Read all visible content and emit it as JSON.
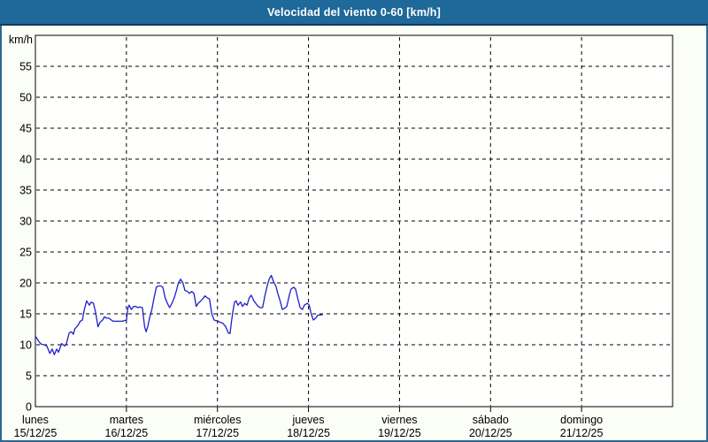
{
  "window": {
    "title": "Velocidad del viento 0-60 [km/h]"
  },
  "colors": {
    "title_bar": "#1e689a",
    "title_bar_edge": "#0f3c60",
    "frame": "#2a6896",
    "page_bg": "#fbfdf7",
    "plot_bg": "#fffffe",
    "grid": "#000000",
    "axis": "#000000",
    "text": "#000000",
    "title_text": "#ffffff",
    "line": "#1f1fc8"
  },
  "chart_data": {
    "type": "line",
    "title": "Velocidad del viento 0-60 [km/h]",
    "ylabel": "km/h",
    "xlabel": "",
    "ylim": [
      0,
      60
    ],
    "y_ticks": [
      0,
      5,
      10,
      15,
      20,
      25,
      30,
      35,
      40,
      45,
      50,
      55
    ],
    "grid": "dashed",
    "legend_position": "none",
    "x_days": [
      {
        "name": "lunes",
        "date": "15/12/25"
      },
      {
        "name": "martes",
        "date": "16/12/25"
      },
      {
        "name": "miércoles",
        "date": "17/12/25"
      },
      {
        "name": "jueves",
        "date": "18/12/25"
      },
      {
        "name": "viernes",
        "date": "19/12/25"
      },
      {
        "name": "sábado",
        "date": "20/12/25"
      },
      {
        "name": "domingo",
        "date": "21/12/25"
      }
    ],
    "x_unit": "hours_since_monday_00h",
    "x_total_hours": 168,
    "series": [
      {
        "name": "velocidad del viento",
        "color": "#1f1fc8",
        "points": [
          [
            0.0,
            11.4
          ],
          [
            0.7,
            10.7
          ],
          [
            1.5,
            10.1
          ],
          [
            2.3,
            10.0
          ],
          [
            3.0,
            9.8
          ],
          [
            3.8,
            8.6
          ],
          [
            4.4,
            9.3
          ],
          [
            5.0,
            8.4
          ],
          [
            5.6,
            9.3
          ],
          [
            6.1,
            8.8
          ],
          [
            6.9,
            10.2
          ],
          [
            7.7,
            9.8
          ],
          [
            8.2,
            10.2
          ],
          [
            8.9,
            11.9
          ],
          [
            9.5,
            12.1
          ],
          [
            10.0,
            11.7
          ],
          [
            10.4,
            12.6
          ],
          [
            11.2,
            13.1
          ],
          [
            11.8,
            13.8
          ],
          [
            12.4,
            14.0
          ],
          [
            12.9,
            15.7
          ],
          [
            13.5,
            17.1
          ],
          [
            14.2,
            16.4
          ],
          [
            14.7,
            16.9
          ],
          [
            15.3,
            16.7
          ],
          [
            15.9,
            15.2
          ],
          [
            16.5,
            12.9
          ],
          [
            17.0,
            13.6
          ],
          [
            17.7,
            14.0
          ],
          [
            18.2,
            14.5
          ],
          [
            18.8,
            14.3
          ],
          [
            19.4,
            14.3
          ],
          [
            20.0,
            14.0
          ],
          [
            20.5,
            13.8
          ],
          [
            21.7,
            13.8
          ],
          [
            22.9,
            13.8
          ],
          [
            24.0,
            14.0
          ],
          [
            24.4,
            16.0
          ],
          [
            24.7,
            16.4
          ],
          [
            25.3,
            15.7
          ],
          [
            25.9,
            16.2
          ],
          [
            26.4,
            16.2
          ],
          [
            27.1,
            16.0
          ],
          [
            27.6,
            16.1
          ],
          [
            28.2,
            16.0
          ],
          [
            28.8,
            12.9
          ],
          [
            29.2,
            12.1
          ],
          [
            29.6,
            12.9
          ],
          [
            30.1,
            14.3
          ],
          [
            30.7,
            15.7
          ],
          [
            31.3,
            17.6
          ],
          [
            31.9,
            19.3
          ],
          [
            32.4,
            19.5
          ],
          [
            33.1,
            19.5
          ],
          [
            33.6,
            19.3
          ],
          [
            34.2,
            17.6
          ],
          [
            34.8,
            16.7
          ],
          [
            35.4,
            16.0
          ],
          [
            36.0,
            16.7
          ],
          [
            36.6,
            17.6
          ],
          [
            37.2,
            18.8
          ],
          [
            37.7,
            20.0
          ],
          [
            38.3,
            20.6
          ],
          [
            38.9,
            20.0
          ],
          [
            39.4,
            18.8
          ],
          [
            40.1,
            18.6
          ],
          [
            40.6,
            18.3
          ],
          [
            41.2,
            18.6
          ],
          [
            41.8,
            18.3
          ],
          [
            42.4,
            16.2
          ],
          [
            42.9,
            16.7
          ],
          [
            43.6,
            17.1
          ],
          [
            44.1,
            17.4
          ],
          [
            44.7,
            17.9
          ],
          [
            45.3,
            17.6
          ],
          [
            45.9,
            17.4
          ],
          [
            46.5,
            15.0
          ],
          [
            47.1,
            14.0
          ],
          [
            47.6,
            13.9
          ],
          [
            48.2,
            13.8
          ],
          [
            48.8,
            13.6
          ],
          [
            49.4,
            13.5
          ],
          [
            50.2,
            12.9
          ],
          [
            50.9,
            11.9
          ],
          [
            51.3,
            11.8
          ],
          [
            51.7,
            13.8
          ],
          [
            52.1,
            15.5
          ],
          [
            52.5,
            16.9
          ],
          [
            52.9,
            17.1
          ],
          [
            53.4,
            16.4
          ],
          [
            54.1,
            16.9
          ],
          [
            54.6,
            16.2
          ],
          [
            55.2,
            16.7
          ],
          [
            55.8,
            16.4
          ],
          [
            56.4,
            17.6
          ],
          [
            56.9,
            18.0
          ],
          [
            57.6,
            17.1
          ],
          [
            58.1,
            16.7
          ],
          [
            58.7,
            16.2
          ],
          [
            59.3,
            16.0
          ],
          [
            59.9,
            16.0
          ],
          [
            60.5,
            17.9
          ],
          [
            61.1,
            19.5
          ],
          [
            61.7,
            20.7
          ],
          [
            62.2,
            21.2
          ],
          [
            62.8,
            20.2
          ],
          [
            63.4,
            19.5
          ],
          [
            63.9,
            18.3
          ],
          [
            64.6,
            16.9
          ],
          [
            65.1,
            15.7
          ],
          [
            65.7,
            15.9
          ],
          [
            66.3,
            16.2
          ],
          [
            66.9,
            17.9
          ],
          [
            67.4,
            19.0
          ],
          [
            68.1,
            19.3
          ],
          [
            68.6,
            19.0
          ],
          [
            69.2,
            17.4
          ],
          [
            69.8,
            16.0
          ],
          [
            70.4,
            15.7
          ],
          [
            70.9,
            16.4
          ],
          [
            71.7,
            16.7
          ],
          [
            72.2,
            16.4
          ],
          [
            72.7,
            15.0
          ],
          [
            73.3,
            14.0
          ],
          [
            73.9,
            14.3
          ],
          [
            74.5,
            14.8
          ],
          [
            75.1,
            14.8
          ],
          [
            75.7,
            14.9
          ]
        ]
      }
    ]
  }
}
